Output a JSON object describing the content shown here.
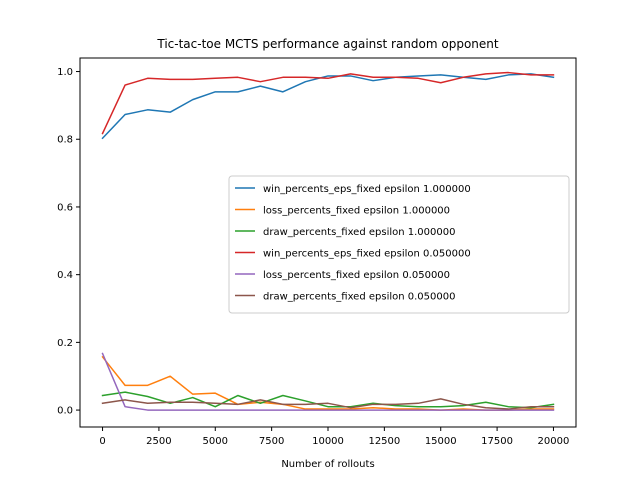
{
  "chart_data": {
    "type": "line",
    "title": "Tic-tac-toe MCTS performance against random opponent",
    "xlabel": "Number of rollouts",
    "ylabel": "",
    "xlim": [
      -1000,
      21000
    ],
    "ylim": [
      -0.05,
      1.04
    ],
    "grid": false,
    "legend_position": "center-right",
    "x_ticks": [
      0,
      2500,
      5000,
      7500,
      10000,
      12500,
      15000,
      17500,
      20000
    ],
    "x_tick_labels": [
      "0",
      "2500",
      "5000",
      "7500",
      "10000",
      "12500",
      "15000",
      "17500",
      "20000"
    ],
    "y_ticks": [
      0.0,
      0.2,
      0.4,
      0.6,
      0.8,
      1.0
    ],
    "y_tick_labels": [
      "0.0",
      "0.2",
      "0.4",
      "0.6",
      "0.8",
      "1.0"
    ],
    "x": [
      0,
      1000,
      2000,
      3000,
      4000,
      5000,
      6000,
      7000,
      8000,
      9000,
      10000,
      11000,
      12000,
      13000,
      14000,
      15000,
      16000,
      17000,
      18000,
      19000,
      20000
    ],
    "series": [
      {
        "name": "win_percents_eps_fixed epsilon 1.000000",
        "color": "#1f77b4",
        "values": [
          0.803,
          0.873,
          0.887,
          0.88,
          0.917,
          0.94,
          0.94,
          0.957,
          0.94,
          0.97,
          0.987,
          0.987,
          0.973,
          0.983,
          0.987,
          0.99,
          0.983,
          0.977,
          0.99,
          0.993,
          0.983
        ]
      },
      {
        "name": "loss_percents_fixed epsilon 1.000000",
        "color": "#ff7f0e",
        "values": [
          0.157,
          0.073,
          0.073,
          0.1,
          0.047,
          0.05,
          0.017,
          0.023,
          0.017,
          0.003,
          0.003,
          0.003,
          0.007,
          0.003,
          0.003,
          0.0,
          0.003,
          0.0,
          0.0,
          0.003,
          0.003
        ]
      },
      {
        "name": "draw_percents_fixed epsilon 1.000000",
        "color": "#2ca02c",
        "values": [
          0.043,
          0.053,
          0.04,
          0.02,
          0.037,
          0.01,
          0.043,
          0.02,
          0.043,
          0.027,
          0.01,
          0.01,
          0.02,
          0.013,
          0.01,
          0.01,
          0.013,
          0.023,
          0.01,
          0.007,
          0.017
        ]
      },
      {
        "name": "win_percents_eps_fixed epsilon 0.050000",
        "color": "#d62728",
        "values": [
          0.817,
          0.96,
          0.98,
          0.977,
          0.977,
          0.98,
          0.983,
          0.97,
          0.983,
          0.983,
          0.98,
          0.993,
          0.983,
          0.983,
          0.98,
          0.967,
          0.983,
          0.993,
          0.997,
          0.99,
          0.99
        ]
      },
      {
        "name": "loss_percents_fixed epsilon 0.050000",
        "color": "#9467bd",
        "values": [
          0.167,
          0.01,
          0.0,
          0.0,
          0.0,
          0.0,
          0.0,
          0.0,
          0.0,
          0.0,
          0.0,
          0.0,
          0.0,
          0.0,
          0.0,
          0.0,
          0.0,
          0.0,
          0.0,
          0.0,
          0.0
        ]
      },
      {
        "name": "draw_percents_fixed epsilon 0.050000",
        "color": "#8c564b",
        "values": [
          0.02,
          0.03,
          0.02,
          0.023,
          0.023,
          0.02,
          0.017,
          0.03,
          0.017,
          0.017,
          0.02,
          0.007,
          0.017,
          0.017,
          0.02,
          0.033,
          0.017,
          0.007,
          0.003,
          0.01,
          0.01
        ]
      }
    ]
  }
}
